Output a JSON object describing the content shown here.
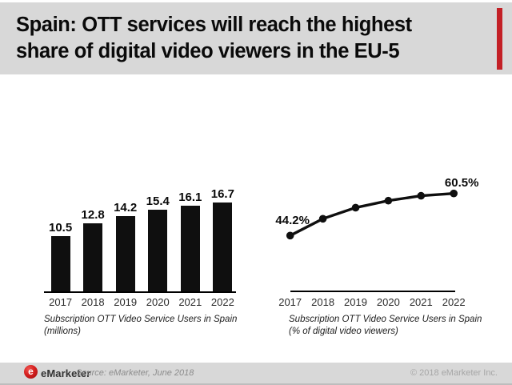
{
  "header": {
    "title_line1": "Spain: OTT services will reach the highest",
    "title_line2": "share of digital video viewers in the EU-5"
  },
  "chart_data": [
    {
      "type": "bar",
      "title": "Subscription OTT Video Service Users in Spain",
      "unit_note": "(millions)",
      "categories": [
        "2017",
        "2018",
        "2019",
        "2020",
        "2021",
        "2022"
      ],
      "values": [
        10.5,
        12.8,
        14.2,
        15.4,
        16.1,
        16.7
      ],
      "data_labels": [
        "10.5",
        "12.8",
        "14.2",
        "15.4",
        "16.1",
        "16.7"
      ],
      "ylim": [
        0,
        17
      ],
      "bar_color": "#0f0f0f",
      "grid": false,
      "legend": false
    },
    {
      "type": "line",
      "title": "Subscription OTT Video Service Users in Spain",
      "unit_note": "(% of digital video viewers)",
      "categories": [
        "2017",
        "2018",
        "2019",
        "2020",
        "2021",
        "2022"
      ],
      "values": [
        44.2,
        50.7,
        55.0,
        57.7,
        59.6,
        60.5
      ],
      "value_labels": [
        "44.2%",
        null,
        null,
        null,
        null,
        "60.5%"
      ],
      "line_color": "#0f0f0f",
      "marker": "circle",
      "grid": false,
      "legend": false
    }
  ],
  "footer": {
    "logo_letter": "e",
    "brand": "eMarketer",
    "source": "Source: eMarketer, June 2018",
    "copyright": "© 2018 eMarketer Inc."
  },
  "colors": {
    "header_bg": "#d8d8d8",
    "footer_bg": "#d8d8d8",
    "accent_red": "#c32026",
    "ink": "#0f0f0f"
  }
}
